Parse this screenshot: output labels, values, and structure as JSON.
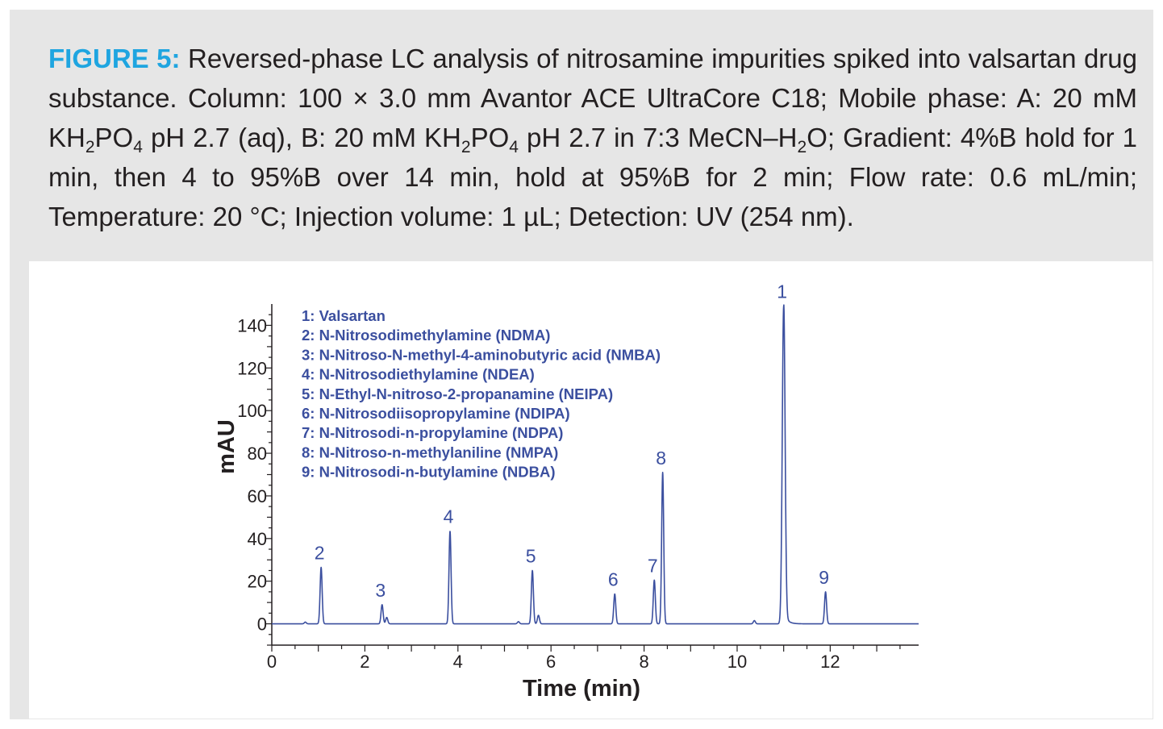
{
  "figure": {
    "label": "FIGURE 5:",
    "caption_segments": [
      {
        "t": " Reversed-phase LC analysis of nitrosamine impurities spiked into valsartan drug substance. Column: 100 × 3.0 mm Avantor ACE UltraCore C18; Mobile phase: A: 20 mM KH"
      },
      {
        "t": "2",
        "sub": true
      },
      {
        "t": "PO"
      },
      {
        "t": "4",
        "sub": true
      },
      {
        "t": " pH 2.7 (aq), B: 20 mM KH"
      },
      {
        "t": "2",
        "sub": true
      },
      {
        "t": "PO"
      },
      {
        "t": "4",
        "sub": true
      },
      {
        "t": " pH 2.7 in 7:3 MeCN–H"
      },
      {
        "t": "2",
        "sub": true
      },
      {
        "t": "O; Gradient: 4%B hold for 1 min, then 4 to 95%B over 14 min, hold at 95%B for 2 min; Flow rate: 0.6 mL/min; Temperature: 20 °C; Injection volume: 1 µL; Detection: UV (254 nm)."
      }
    ]
  },
  "colors": {
    "caption_label": "#1fa5e0",
    "trace": "#3b4f9f",
    "axis": "#231f20",
    "frame": "#e6e6e6"
  },
  "chart_data": {
    "type": "line",
    "xlabel": "Time (min)",
    "ylabel": "mAU",
    "xlim": [
      0,
      13.9
    ],
    "ylim": [
      -10,
      150
    ],
    "xticks": [
      0,
      2,
      4,
      6,
      8,
      10,
      12
    ],
    "yticks": [
      0,
      20,
      40,
      60,
      80,
      100,
      120,
      140
    ],
    "grid": false,
    "legend_position": "top-left",
    "legend": [
      "1: Valsartan",
      "2: N-Nitrosodimethylamine (NDMA)",
      "3: N-Nitroso-N-methyl-4-aminobutyric acid (NMBA)",
      "4: N-Nitrosodiethylamine (NDEA)",
      "5: N-Ethyl-N-nitroso-2-propanamine (NEIPA)",
      "6: N-Nitrosodiisopropylamine (NDIPA)",
      "7: N-Nitrosodi-n-propylamine (NDPA)",
      "8: N-Nitroso-n-methylaniline (NMPA)",
      "9: N-Nitrosodi-n-butylamine (NDBA)"
    ],
    "peaks": [
      {
        "label": "2",
        "x": 1.06,
        "y": 26.5
      },
      {
        "label": "3",
        "x": 2.37,
        "y": 9
      },
      {
        "label": "4",
        "x": 3.83,
        "y": 43.5
      },
      {
        "label": "5",
        "x": 5.6,
        "y": 25
      },
      {
        "label": "6",
        "x": 7.37,
        "y": 14
      },
      {
        "label": "7",
        "x": 8.22,
        "y": 20.5
      },
      {
        "label": "8",
        "x": 8.4,
        "y": 71
      },
      {
        "label": "1",
        "x": 11.0,
        "y": 149
      },
      {
        "label": "9",
        "x": 11.9,
        "y": 15
      }
    ],
    "minor_peaks": [
      {
        "x": 0.72,
        "y": 0.8
      },
      {
        "x": 2.47,
        "y": 3
      },
      {
        "x": 5.3,
        "y": 1
      },
      {
        "x": 5.73,
        "y": 4
      },
      {
        "x": 10.37,
        "y": 1.5
      }
    ]
  }
}
